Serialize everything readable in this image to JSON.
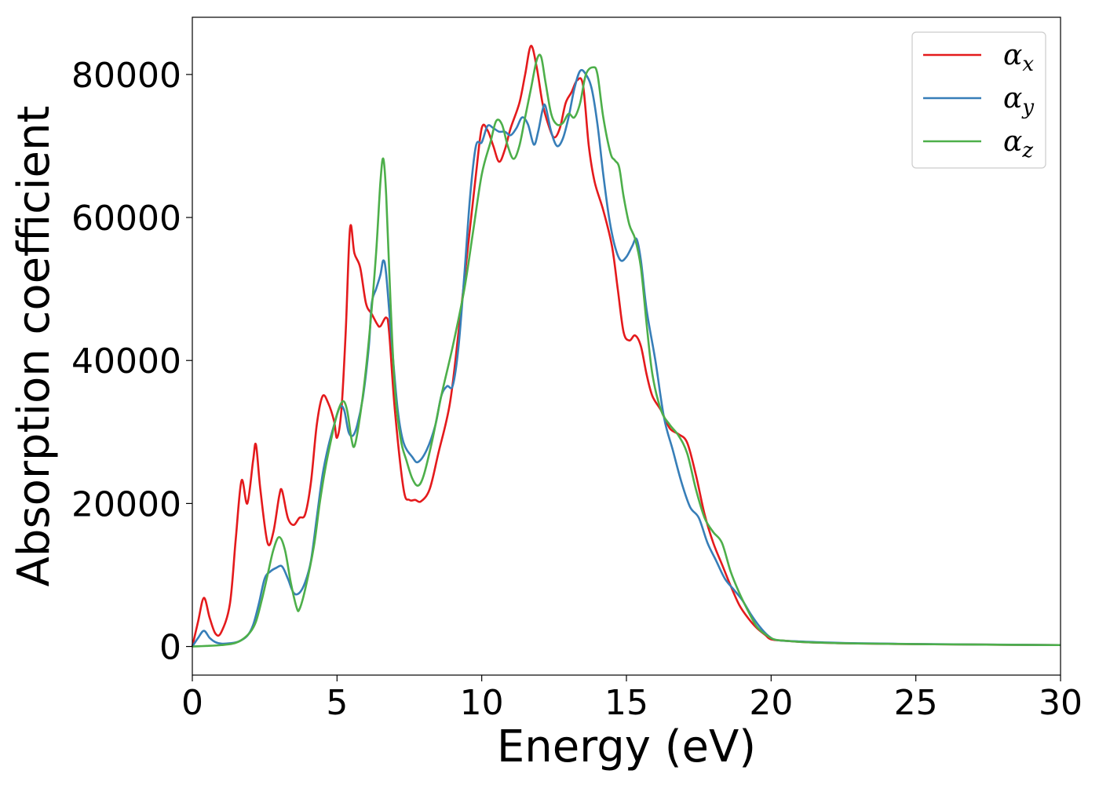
{
  "chart_data": {
    "type": "line",
    "title": "",
    "xlabel": "Energy (eV)",
    "ylabel": "Absorption coefficient",
    "xlim": [
      0,
      30
    ],
    "ylim": [
      -4000,
      88000
    ],
    "xticks": [
      0,
      5,
      10,
      15,
      20,
      25,
      30
    ],
    "yticks": [
      0,
      20000,
      40000,
      60000,
      80000
    ],
    "grid": false,
    "legend_position": "top-right",
    "series": [
      {
        "name": "α_x",
        "base": "α",
        "sub": "x",
        "color": "#e41a1c",
        "points": [
          [
            0,
            0
          ],
          [
            0.2,
            3500
          ],
          [
            0.4,
            6800
          ],
          [
            0.6,
            4000
          ],
          [
            0.8,
            1800
          ],
          [
            1.0,
            2000
          ],
          [
            1.3,
            6000
          ],
          [
            1.5,
            15000
          ],
          [
            1.7,
            23200
          ],
          [
            1.9,
            20000
          ],
          [
            2.1,
            26000
          ],
          [
            2.2,
            28200
          ],
          [
            2.35,
            22000
          ],
          [
            2.6,
            14500
          ],
          [
            2.8,
            16000
          ],
          [
            3.0,
            21000
          ],
          [
            3.1,
            21800
          ],
          [
            3.3,
            18000
          ],
          [
            3.5,
            17000
          ],
          [
            3.7,
            18000
          ],
          [
            3.9,
            18500
          ],
          [
            4.1,
            23000
          ],
          [
            4.3,
            31000
          ],
          [
            4.5,
            35000
          ],
          [
            4.7,
            34000
          ],
          [
            4.9,
            31500
          ],
          [
            5.0,
            29200
          ],
          [
            5.15,
            33000
          ],
          [
            5.3,
            44000
          ],
          [
            5.45,
            58500
          ],
          [
            5.6,
            55000
          ],
          [
            5.8,
            53000
          ],
          [
            6.0,
            48000
          ],
          [
            6.2,
            46500
          ],
          [
            6.4,
            45000
          ],
          [
            6.5,
            44800
          ],
          [
            6.7,
            46000
          ],
          [
            6.8,
            44000
          ],
          [
            7.0,
            33000
          ],
          [
            7.3,
            22000
          ],
          [
            7.5,
            20500
          ],
          [
            7.7,
            20500
          ],
          [
            7.9,
            20300
          ],
          [
            8.2,
            22000
          ],
          [
            8.5,
            27000
          ],
          [
            8.9,
            34000
          ],
          [
            9.2,
            44000
          ],
          [
            9.5,
            55000
          ],
          [
            9.8,
            66000
          ],
          [
            10.0,
            72500
          ],
          [
            10.2,
            72200
          ],
          [
            10.4,
            70000
          ],
          [
            10.6,
            67800
          ],
          [
            10.8,
            69500
          ],
          [
            11.0,
            72500
          ],
          [
            11.3,
            76000
          ],
          [
            11.5,
            80000
          ],
          [
            11.7,
            84000
          ],
          [
            11.9,
            81000
          ],
          [
            12.1,
            76000
          ],
          [
            12.3,
            73000
          ],
          [
            12.5,
            71200
          ],
          [
            12.7,
            72500
          ],
          [
            12.9,
            76000
          ],
          [
            13.1,
            77500
          ],
          [
            13.3,
            79200
          ],
          [
            13.5,
            78500
          ],
          [
            13.7,
            70000
          ],
          [
            13.9,
            65000
          ],
          [
            14.2,
            61000
          ],
          [
            14.5,
            56000
          ],
          [
            14.7,
            50000
          ],
          [
            14.9,
            44000
          ],
          [
            15.1,
            42800
          ],
          [
            15.3,
            43500
          ],
          [
            15.5,
            42000
          ],
          [
            15.7,
            38000
          ],
          [
            15.9,
            35000
          ],
          [
            16.2,
            33000
          ],
          [
            16.5,
            30500
          ],
          [
            16.8,
            29700
          ],
          [
            17.1,
            28500
          ],
          [
            17.4,
            24000
          ],
          [
            17.7,
            18500
          ],
          [
            18.0,
            14500
          ],
          [
            18.3,
            11500
          ],
          [
            18.6,
            8500
          ],
          [
            18.9,
            5800
          ],
          [
            19.2,
            4000
          ],
          [
            19.5,
            2600
          ],
          [
            19.8,
            1600
          ],
          [
            20.0,
            1000
          ],
          [
            20.5,
            800
          ],
          [
            21,
            650
          ],
          [
            22,
            500
          ],
          [
            23,
            420
          ],
          [
            25,
            330
          ],
          [
            27,
            270
          ],
          [
            30,
            200
          ]
        ]
      },
      {
        "name": "α_y",
        "base": "α",
        "sub": "y",
        "color": "#377eb8",
        "points": [
          [
            0,
            0
          ],
          [
            0.2,
            1200
          ],
          [
            0.4,
            2200
          ],
          [
            0.6,
            1200
          ],
          [
            0.8,
            600
          ],
          [
            1.0,
            400
          ],
          [
            1.3,
            450
          ],
          [
            1.6,
            700
          ],
          [
            1.9,
            1500
          ],
          [
            2.1,
            3000
          ],
          [
            2.3,
            6000
          ],
          [
            2.5,
            9500
          ],
          [
            2.7,
            10500
          ],
          [
            2.9,
            11000
          ],
          [
            3.1,
            11200
          ],
          [
            3.3,
            9500
          ],
          [
            3.5,
            7500
          ],
          [
            3.7,
            7500
          ],
          [
            3.9,
            9000
          ],
          [
            4.1,
            12000
          ],
          [
            4.3,
            18000
          ],
          [
            4.5,
            24000
          ],
          [
            4.7,
            28000
          ],
          [
            4.9,
            31000
          ],
          [
            5.1,
            33500
          ],
          [
            5.25,
            33000
          ],
          [
            5.4,
            30000
          ],
          [
            5.55,
            29500
          ],
          [
            5.7,
            31000
          ],
          [
            5.9,
            35000
          ],
          [
            6.1,
            42000
          ],
          [
            6.2,
            48000
          ],
          [
            6.35,
            50000
          ],
          [
            6.5,
            52000
          ],
          [
            6.6,
            54000
          ],
          [
            6.7,
            52000
          ],
          [
            6.9,
            42000
          ],
          [
            7.1,
            33000
          ],
          [
            7.3,
            28500
          ],
          [
            7.6,
            26500
          ],
          [
            7.8,
            25800
          ],
          [
            8.1,
            27500
          ],
          [
            8.4,
            31000
          ],
          [
            8.6,
            35000
          ],
          [
            8.8,
            36400
          ],
          [
            9.0,
            36500
          ],
          [
            9.2,
            42000
          ],
          [
            9.4,
            52000
          ],
          [
            9.6,
            63000
          ],
          [
            9.8,
            70000
          ],
          [
            10.0,
            70500
          ],
          [
            10.2,
            72800
          ],
          [
            10.4,
            72500
          ],
          [
            10.6,
            72000
          ],
          [
            10.8,
            72000
          ],
          [
            11.0,
            71500
          ],
          [
            11.2,
            72500
          ],
          [
            11.4,
            74000
          ],
          [
            11.6,
            73000
          ],
          [
            11.8,
            70200
          ],
          [
            11.95,
            72000
          ],
          [
            12.1,
            75000
          ],
          [
            12.2,
            75600
          ],
          [
            12.4,
            72000
          ],
          [
            12.6,
            70000
          ],
          [
            12.8,
            71000
          ],
          [
            13.0,
            74000
          ],
          [
            13.2,
            78000
          ],
          [
            13.4,
            80500
          ],
          [
            13.6,
            80000
          ],
          [
            13.8,
            78000
          ],
          [
            14.0,
            73000
          ],
          [
            14.2,
            66000
          ],
          [
            14.4,
            60000
          ],
          [
            14.6,
            56000
          ],
          [
            14.8,
            54000
          ],
          [
            15.0,
            54500
          ],
          [
            15.2,
            56000
          ],
          [
            15.35,
            57000
          ],
          [
            15.5,
            54000
          ],
          [
            15.7,
            47000
          ],
          [
            16.0,
            40000
          ],
          [
            16.3,
            32000
          ],
          [
            16.6,
            27500
          ],
          [
            16.9,
            23000
          ],
          [
            17.2,
            19500
          ],
          [
            17.5,
            18000
          ],
          [
            17.8,
            14500
          ],
          [
            18.1,
            12000
          ],
          [
            18.4,
            9500
          ],
          [
            18.7,
            8000
          ],
          [
            19.0,
            6500
          ],
          [
            19.3,
            4500
          ],
          [
            19.6,
            2800
          ],
          [
            19.9,
            1500
          ],
          [
            20.2,
            900
          ],
          [
            21,
            700
          ],
          [
            22,
            550
          ],
          [
            23,
            450
          ],
          [
            25,
            350
          ],
          [
            27,
            280
          ],
          [
            30,
            200
          ]
        ]
      },
      {
        "name": "α_z",
        "base": "α",
        "sub": "z",
        "color": "#4daf4a",
        "points": [
          [
            0,
            0
          ],
          [
            0.5,
            80
          ],
          [
            1.0,
            200
          ],
          [
            1.4,
            400
          ],
          [
            1.7,
            900
          ],
          [
            2.0,
            2000
          ],
          [
            2.2,
            3500
          ],
          [
            2.4,
            6500
          ],
          [
            2.6,
            10000
          ],
          [
            2.8,
            13500
          ],
          [
            3.0,
            15300
          ],
          [
            3.2,
            13500
          ],
          [
            3.4,
            9000
          ],
          [
            3.6,
            5500
          ],
          [
            3.7,
            5200
          ],
          [
            3.9,
            8000
          ],
          [
            4.2,
            14000
          ],
          [
            4.4,
            20000
          ],
          [
            4.6,
            25000
          ],
          [
            4.8,
            29000
          ],
          [
            5.0,
            32500
          ],
          [
            5.2,
            34300
          ],
          [
            5.35,
            33000
          ],
          [
            5.5,
            29000
          ],
          [
            5.6,
            28000
          ],
          [
            5.75,
            31000
          ],
          [
            5.95,
            37000
          ],
          [
            6.15,
            45000
          ],
          [
            6.35,
            55000
          ],
          [
            6.5,
            65000
          ],
          [
            6.6,
            68200
          ],
          [
            6.7,
            63000
          ],
          [
            6.85,
            48000
          ],
          [
            7.0,
            36000
          ],
          [
            7.2,
            29000
          ],
          [
            7.4,
            26000
          ],
          [
            7.6,
            23500
          ],
          [
            7.8,
            22500
          ],
          [
            8.0,
            24000
          ],
          [
            8.3,
            29000
          ],
          [
            8.6,
            35000
          ],
          [
            9.0,
            42000
          ],
          [
            9.4,
            50000
          ],
          [
            9.7,
            58000
          ],
          [
            10.0,
            66000
          ],
          [
            10.3,
            70500
          ],
          [
            10.5,
            73500
          ],
          [
            10.7,
            73000
          ],
          [
            10.9,
            70000
          ],
          [
            11.1,
            68200
          ],
          [
            11.3,
            70000
          ],
          [
            11.5,
            74000
          ],
          [
            11.7,
            78000
          ],
          [
            11.9,
            82000
          ],
          [
            12.05,
            82500
          ],
          [
            12.2,
            79000
          ],
          [
            12.4,
            74500
          ],
          [
            12.6,
            73000
          ],
          [
            12.8,
            73200
          ],
          [
            13.0,
            74500
          ],
          [
            13.2,
            74000
          ],
          [
            13.4,
            76000
          ],
          [
            13.6,
            80000
          ],
          [
            13.85,
            81000
          ],
          [
            14.0,
            80000
          ],
          [
            14.2,
            74000
          ],
          [
            14.45,
            69000
          ],
          [
            14.6,
            68000
          ],
          [
            14.75,
            67000
          ],
          [
            14.9,
            63000
          ],
          [
            15.1,
            59000
          ],
          [
            15.3,
            57000
          ],
          [
            15.5,
            53000
          ],
          [
            15.7,
            45000
          ],
          [
            15.9,
            38000
          ],
          [
            16.2,
            33000
          ],
          [
            16.5,
            31000
          ],
          [
            16.8,
            29500
          ],
          [
            17.1,
            27000
          ],
          [
            17.4,
            22000
          ],
          [
            17.7,
            18000
          ],
          [
            18.0,
            16000
          ],
          [
            18.3,
            14500
          ],
          [
            18.6,
            10500
          ],
          [
            18.9,
            7500
          ],
          [
            19.2,
            5000
          ],
          [
            19.5,
            2800
          ],
          [
            19.8,
            1700
          ],
          [
            20.1,
            1000
          ],
          [
            20.5,
            800
          ],
          [
            21,
            650
          ],
          [
            22,
            500
          ],
          [
            23,
            420
          ],
          [
            25,
            330
          ],
          [
            27,
            270
          ],
          [
            30,
            200
          ]
        ]
      }
    ]
  }
}
